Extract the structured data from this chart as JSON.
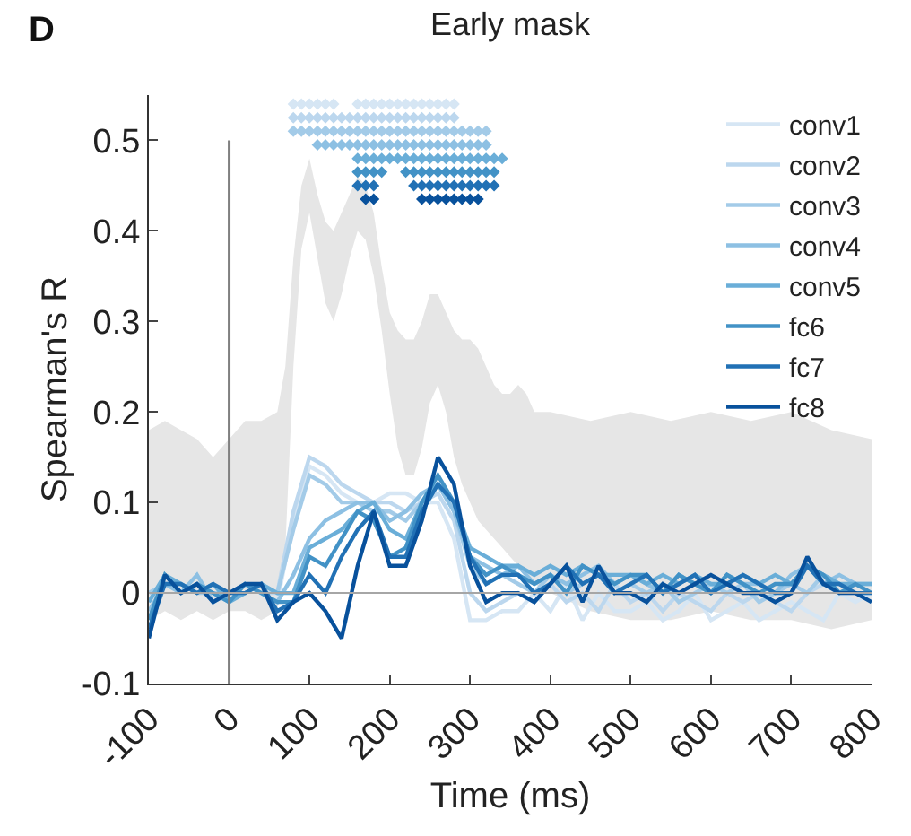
{
  "chart_data": {
    "type": "line",
    "title": "Early mask",
    "xlabel": "Time (ms)",
    "ylabel": "Spearman's R",
    "annotations": [
      "D"
    ],
    "x": [
      -100,
      -80,
      -60,
      -40,
      -20,
      0,
      20,
      40,
      60,
      80,
      100,
      120,
      140,
      160,
      180,
      200,
      220,
      240,
      260,
      280,
      300,
      320,
      340,
      360,
      380,
      400,
      420,
      440,
      460,
      480,
      500,
      520,
      540,
      560,
      580,
      600,
      620,
      640,
      660,
      680,
      700,
      720,
      740,
      760,
      780,
      800
    ],
    "series": [
      {
        "color": "#e6e6e6",
        "values": [
          null,
          null,
          null,
          null,
          null,
          null,
          null,
          null,
          null,
          null,
          null,
          null,
          null,
          null,
          null,
          null,
          null,
          null,
          null,
          null,
          null,
          null,
          null,
          null,
          null,
          null,
          null,
          null,
          null,
          null,
          null,
          null,
          null,
          null,
          null,
          null,
          null,
          null,
          null,
          null,
          null,
          null,
          null,
          null,
          null,
          null,
          null,
          null,
          null,
          null
        ],
        "x": [
          -100,
          -80,
          -60,
          -40,
          -20,
          0,
          20,
          40,
          60,
          70,
          80,
          90,
          100,
          110,
          120,
          130,
          140,
          150,
          160,
          170,
          180,
          190,
          200,
          210,
          220,
          230,
          240,
          250,
          260,
          270,
          280,
          290,
          300,
          310,
          320,
          330,
          340,
          350,
          360,
          370,
          380,
          400,
          450,
          500,
          550,
          600,
          650,
          700,
          750,
          800
        ],
        "upper": [
          0.18,
          0.19,
          0.18,
          0.17,
          0.15,
          0.17,
          0.19,
          0.19,
          0.2,
          0.25,
          0.37,
          0.45,
          0.48,
          0.44,
          0.41,
          0.4,
          0.42,
          0.44,
          0.46,
          0.45,
          0.42,
          0.36,
          0.31,
          0.29,
          0.28,
          0.28,
          0.3,
          0.33,
          0.33,
          0.31,
          0.29,
          0.28,
          0.28,
          0.27,
          0.25,
          0.23,
          0.22,
          0.22,
          0.23,
          0.22,
          0.2,
          0.2,
          0.19,
          0.2,
          0.19,
          0.2,
          0.19,
          0.2,
          0.18,
          0.17
        ],
        "lower": [
          -0.03,
          -0.02,
          -0.03,
          -0.02,
          -0.03,
          -0.02,
          -0.02,
          -0.03,
          -0.02,
          0.05,
          0.25,
          0.38,
          0.42,
          0.37,
          0.32,
          0.3,
          0.33,
          0.37,
          0.4,
          0.39,
          0.35,
          0.29,
          0.22,
          0.16,
          0.13,
          0.13,
          0.16,
          0.21,
          0.23,
          0.2,
          0.15,
          0.12,
          0.1,
          0.08,
          0.07,
          0.06,
          0.05,
          0.04,
          0.03,
          0.02,
          0.01,
          0.0,
          -0.02,
          -0.03,
          -0.03,
          -0.02,
          -0.03,
          -0.03,
          -0.04,
          -0.03
        ]
      },
      {
        "name": "conv1",
        "color": "#d6e6f4",
        "values": [
          0.0,
          0.01,
          0.0,
          0.01,
          -0.01,
          0.0,
          0.01,
          0.0,
          -0.01,
          0.08,
          0.14,
          0.13,
          0.11,
          0.1,
          0.1,
          0.11,
          0.11,
          0.1,
          0.1,
          0.06,
          -0.03,
          -0.03,
          -0.02,
          -0.02,
          0.0,
          -0.02,
          0.01,
          -0.03,
          0.0,
          -0.02,
          -0.02,
          -0.01,
          -0.03,
          -0.02,
          0.0,
          -0.03,
          -0.02,
          -0.01,
          -0.03,
          -0.02,
          -0.01,
          -0.02,
          -0.03,
          0.0,
          -0.01,
          0.0
        ]
      },
      {
        "name": "conv2",
        "color": "#bcd7ee",
        "values": [
          -0.01,
          0.02,
          0.0,
          0.01,
          0.0,
          -0.01,
          0.01,
          0.0,
          0.0,
          0.09,
          0.15,
          0.14,
          0.12,
          0.11,
          0.1,
          0.1,
          0.09,
          0.1,
          0.11,
          0.08,
          0.0,
          -0.02,
          -0.01,
          0.0,
          -0.01,
          0.01,
          -0.01,
          0.0,
          -0.02,
          0.01,
          -0.01,
          0.0,
          -0.02,
          0.0,
          -0.01,
          -0.02,
          0.0,
          -0.01,
          0.0,
          -0.01,
          -0.02,
          0.0,
          0.01,
          0.0,
          0.0,
          -0.01
        ]
      },
      {
        "name": "conv3",
        "color": "#a3cbe8",
        "values": [
          0.0,
          0.01,
          0.01,
          0.0,
          0.0,
          0.0,
          0.0,
          0.01,
          0.0,
          0.07,
          0.13,
          0.12,
          0.1,
          0.1,
          0.09,
          0.09,
          0.08,
          0.1,
          0.12,
          0.09,
          0.03,
          0.01,
          0.02,
          0.01,
          0.0,
          0.02,
          0.0,
          0.01,
          0.02,
          0.0,
          0.01,
          0.0,
          0.01,
          -0.01,
          0.0,
          0.01,
          0.0,
          0.01,
          -0.01,
          0.0,
          0.01,
          0.0,
          0.02,
          0.01,
          0.0,
          0.0
        ]
      },
      {
        "name": "conv4",
        "color": "#8dc0e3",
        "values": [
          -0.02,
          0.01,
          0.0,
          0.02,
          -0.01,
          0.0,
          0.01,
          0.0,
          -0.01,
          0.02,
          0.06,
          0.08,
          0.09,
          0.1,
          0.1,
          0.08,
          0.09,
          0.11,
          0.12,
          0.09,
          0.04,
          0.03,
          0.02,
          0.03,
          0.01,
          0.02,
          0.01,
          0.02,
          0.03,
          0.01,
          0.02,
          0.01,
          0.0,
          0.02,
          0.01,
          0.0,
          0.02,
          0.01,
          0.01,
          0.0,
          0.02,
          0.03,
          0.01,
          0.02,
          0.01,
          0.01
        ]
      },
      {
        "name": "conv5",
        "color": "#6aaed8",
        "values": [
          -0.01,
          0.02,
          0.01,
          0.0,
          0.01,
          -0.01,
          0.0,
          0.01,
          0.0,
          0.0,
          0.05,
          0.06,
          0.07,
          0.09,
          0.1,
          0.07,
          0.06,
          0.1,
          0.12,
          0.1,
          0.05,
          0.04,
          0.03,
          0.03,
          0.02,
          0.03,
          0.02,
          0.03,
          0.02,
          0.02,
          0.02,
          0.01,
          0.02,
          0.01,
          0.02,
          0.01,
          0.01,
          0.02,
          0.01,
          0.02,
          0.01,
          0.03,
          0.02,
          0.01,
          0.01,
          0.01
        ]
      },
      {
        "name": "fc6",
        "color": "#4292c6",
        "values": [
          -0.03,
          0.02,
          0.0,
          0.01,
          0.0,
          -0.01,
          0.01,
          0.0,
          -0.01,
          -0.01,
          0.04,
          0.03,
          0.06,
          0.09,
          0.08,
          0.04,
          0.05,
          0.1,
          0.13,
          0.1,
          0.04,
          0.02,
          0.03,
          0.02,
          0.01,
          0.02,
          0.0,
          0.03,
          0.02,
          0.01,
          0.02,
          0.02,
          0.0,
          0.02,
          0.01,
          0.0,
          0.02,
          0.01,
          0.0,
          0.01,
          0.01,
          0.03,
          0.02,
          0.0,
          0.01,
          0.0
        ]
      },
      {
        "name": "fc7",
        "color": "#2171b5",
        "values": [
          -0.04,
          0.01,
          0.01,
          0.0,
          0.01,
          0.0,
          0.0,
          0.01,
          -0.02,
          -0.01,
          0.02,
          0.0,
          0.04,
          0.07,
          0.09,
          0.04,
          0.04,
          0.09,
          0.12,
          0.1,
          0.04,
          0.01,
          0.02,
          0.02,
          0.0,
          0.01,
          0.03,
          0.01,
          0.02,
          0.0,
          0.01,
          0.02,
          0.0,
          0.01,
          0.02,
          0.0,
          0.01,
          0.02,
          0.01,
          0.0,
          0.0,
          0.03,
          0.01,
          0.01,
          0.0,
          0.0
        ]
      },
      {
        "name": "fc8",
        "color": "#08519c",
        "values": [
          -0.05,
          0.02,
          0.0,
          0.01,
          -0.01,
          0.0,
          0.01,
          0.01,
          -0.03,
          -0.01,
          0.0,
          -0.02,
          -0.05,
          0.03,
          0.09,
          0.03,
          0.03,
          0.08,
          0.15,
          0.12,
          0.03,
          -0.01,
          0.0,
          0.0,
          -0.01,
          0.01,
          0.03,
          -0.01,
          0.03,
          0.0,
          0.0,
          -0.01,
          0.01,
          0.0,
          0.01,
          0.02,
          0.01,
          0.0,
          0.0,
          -0.01,
          0.0,
          0.04,
          0.01,
          0.0,
          0.0,
          -0.01
        ]
      },
      {
        "type": "scatter",
        "marker": "diamond",
        "color": "#d6e6f4",
        "x": [
          80,
          90,
          100,
          110,
          120,
          130,
          160,
          170,
          180,
          190,
          200,
          210,
          220,
          230,
          240,
          250,
          260,
          270,
          280
        ],
        "values": [
          0.54,
          0.54,
          0.54,
          0.54,
          0.54,
          0.54,
          0.54,
          0.54,
          0.54,
          0.54,
          0.54,
          0.54,
          0.54,
          0.54,
          0.54,
          0.54,
          0.54,
          0.54,
          0.54
        ]
      },
      {
        "type": "scatter",
        "marker": "diamond",
        "color": "#bcd7ee",
        "x": [
          80,
          90,
          100,
          110,
          120,
          130,
          140,
          150,
          160,
          170,
          180,
          190,
          200,
          210,
          220,
          230,
          240,
          250,
          260,
          270,
          280
        ],
        "values": [
          0.525,
          0.525,
          0.525,
          0.525,
          0.525,
          0.525,
          0.525,
          0.525,
          0.525,
          0.525,
          0.525,
          0.525,
          0.525,
          0.525,
          0.525,
          0.525,
          0.525,
          0.525,
          0.525,
          0.525,
          0.525
        ]
      },
      {
        "type": "scatter",
        "marker": "diamond",
        "color": "#a3cbe8",
        "x": [
          80,
          90,
          100,
          110,
          120,
          130,
          140,
          150,
          160,
          170,
          180,
          190,
          200,
          210,
          220,
          230,
          240,
          250,
          260,
          270,
          280,
          290,
          300,
          310,
          320
        ],
        "values": [
          0.51,
          0.51,
          0.51,
          0.51,
          0.51,
          0.51,
          0.51,
          0.51,
          0.51,
          0.51,
          0.51,
          0.51,
          0.51,
          0.51,
          0.51,
          0.51,
          0.51,
          0.51,
          0.51,
          0.51,
          0.51,
          0.51,
          0.51,
          0.51,
          0.51
        ]
      },
      {
        "type": "scatter",
        "marker": "diamond",
        "color": "#8dc0e3",
        "x": [
          110,
          120,
          130,
          140,
          150,
          160,
          170,
          180,
          190,
          200,
          210,
          220,
          230,
          240,
          250,
          260,
          270,
          280,
          290,
          300,
          310,
          320
        ],
        "values": [
          0.495,
          0.495,
          0.495,
          0.495,
          0.495,
          0.495,
          0.495,
          0.495,
          0.495,
          0.495,
          0.495,
          0.495,
          0.495,
          0.495,
          0.495,
          0.495,
          0.495,
          0.495,
          0.495,
          0.495,
          0.495,
          0.495
        ]
      },
      {
        "type": "scatter",
        "marker": "diamond",
        "color": "#6aaed8",
        "x": [
          160,
          170,
          180,
          190,
          200,
          210,
          220,
          230,
          240,
          250,
          260,
          270,
          280,
          290,
          300,
          310,
          320,
          330,
          340
        ],
        "values": [
          0.48,
          0.48,
          0.48,
          0.48,
          0.48,
          0.48,
          0.48,
          0.48,
          0.48,
          0.48,
          0.48,
          0.48,
          0.48,
          0.48,
          0.48,
          0.48,
          0.48,
          0.48,
          0.48
        ]
      },
      {
        "type": "scatter",
        "marker": "diamond",
        "color": "#4292c6",
        "x": [
          160,
          170,
          180,
          190,
          220,
          230,
          240,
          250,
          260,
          270,
          280,
          290,
          300,
          310,
          320,
          330
        ],
        "values": [
          0.465,
          0.465,
          0.465,
          0.465,
          0.465,
          0.465,
          0.465,
          0.465,
          0.465,
          0.465,
          0.465,
          0.465,
          0.465,
          0.465,
          0.465,
          0.465
        ]
      },
      {
        "type": "scatter",
        "marker": "diamond",
        "color": "#2171b5",
        "x": [
          160,
          170,
          180,
          230,
          240,
          250,
          260,
          270,
          280,
          290,
          300,
          310,
          320,
          330
        ],
        "values": [
          0.45,
          0.45,
          0.45,
          0.45,
          0.45,
          0.45,
          0.45,
          0.45,
          0.45,
          0.45,
          0.45,
          0.45,
          0.45,
          0.45
        ]
      },
      {
        "type": "scatter",
        "marker": "diamond",
        "color": "#08519c",
        "x": [
          170,
          180,
          240,
          250,
          260,
          270,
          280,
          290,
          300,
          310
        ],
        "values": [
          0.435,
          0.435,
          0.435,
          0.435,
          0.435,
          0.435,
          0.435,
          0.435,
          0.435,
          0.435
        ]
      }
    ],
    "ref_lines": [
      {
        "axis": "x",
        "value": 0,
        "color": "#808080"
      },
      {
        "axis": "y",
        "value": 0,
        "color": "#a6a6a6"
      }
    ],
    "xlim": [
      -100,
      800
    ],
    "xticks": [
      -100,
      0,
      100,
      200,
      300,
      400,
      500,
      600,
      700,
      800
    ],
    "ylim": [
      -0.1,
      0.55
    ],
    "yticks": [
      -0.1,
      0,
      0.1,
      0.2,
      0.3,
      0.4,
      0.5
    ],
    "legend": "top right",
    "marker": "none",
    "line_style": "solid"
  }
}
